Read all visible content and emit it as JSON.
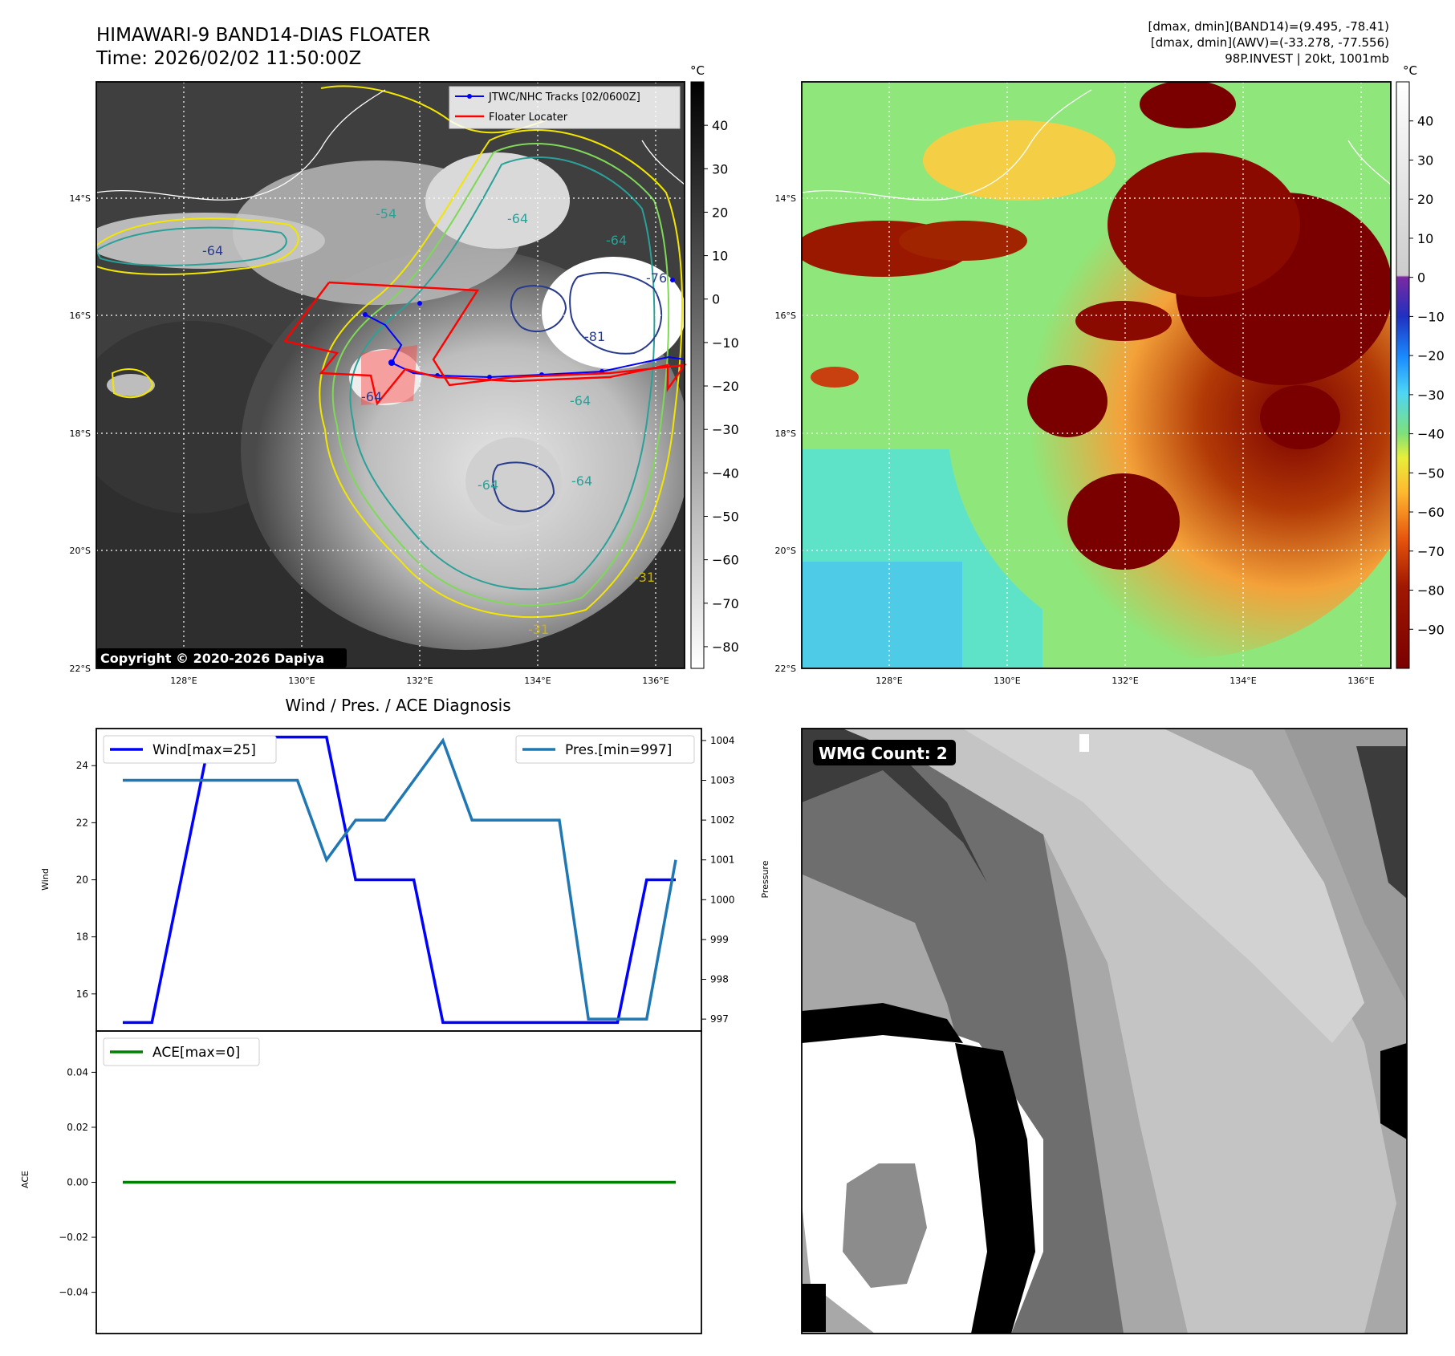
{
  "header": {
    "title_line1": "HIMAWARI-9 BAND14-DIAS FLOATER",
    "title_line2": "Time: 2026/02/02 11:50:00Z",
    "stats_line1": "[dmax, dmin](BAND14)=(9.495, -78.41)",
    "stats_line2": "[dmax, dmin](AWV)=(-33.278, -77.556)",
    "stats_line3": "98P.INVEST | 20kt, 1001mb"
  },
  "map": {
    "lat_labels": [
      "14°S",
      "16°S",
      "18°S",
      "20°S",
      "22°S"
    ],
    "lon_labels": [
      "128°E",
      "130°E",
      "132°E",
      "134°E",
      "136°E"
    ],
    "copyright": "Copyright © 2020-2026 Dapiya",
    "legend": {
      "track_label": "JTWC/NHC Tracks [02/0600Z]",
      "floater_label": "Floater Locater",
      "track_color": "#0000ff",
      "floater_color": "#ff0000"
    },
    "contour_labels": [
      "-64",
      "-64",
      "-54",
      "-64",
      "-76",
      "-81",
      "-64",
      "-64",
      "-31",
      "-31",
      "-64",
      "-64"
    ],
    "ir_colorbar": {
      "unit": "°C",
      "ticks": [
        40,
        30,
        20,
        10,
        0,
        -10,
        -20,
        -30,
        -40,
        -50,
        -60,
        -70,
        -80
      ],
      "tick_labels": [
        "40",
        "30",
        "20",
        "10",
        "0",
        "−10",
        "−20",
        "−30",
        "−40",
        "−50",
        "−60",
        "−70",
        "−80"
      ],
      "range": [
        -85,
        50
      ]
    },
    "enh_colorbar": {
      "unit": "°C",
      "ticks": [
        40,
        30,
        20,
        10,
        0,
        -10,
        -20,
        -30,
        -40,
        -50,
        -60,
        -70,
        -80,
        -90
      ],
      "tick_labels": [
        "40",
        "30",
        "20",
        "10",
        "0",
        "−10",
        "−20",
        "−30",
        "−40",
        "−50",
        "−60",
        "−70",
        "−80",
        "−90"
      ],
      "range": [
        -100,
        50
      ]
    }
  },
  "diag": {
    "title": "Wind / Pres. / ACE Diagnosis"
  },
  "wmg": {
    "label": "WMG Count: 2"
  },
  "chart_data": [
    {
      "type": "line",
      "title": "Wind / Pres. / ACE Diagnosis",
      "x": [
        0,
        1,
        2,
        3,
        4,
        5,
        6,
        7,
        8,
        9,
        10,
        11,
        12,
        13,
        14,
        15,
        16,
        17,
        18,
        19
      ],
      "series": [
        {
          "name": "Wind[max=25]",
          "axis": "left",
          "color": "#0000ff",
          "values": [
            15,
            15,
            20,
            25,
            25,
            25,
            25,
            25,
            20,
            20,
            20,
            15,
            15,
            15,
            15,
            15,
            15,
            15,
            20,
            20
          ]
        },
        {
          "name": "Pres.[min=997]",
          "axis": "right",
          "color": "#1f77b4",
          "values": [
            1003,
            1003,
            1003,
            1003,
            1003,
            1003,
            1003,
            1001,
            1002,
            1002,
            1003,
            1004,
            1002,
            1002,
            1002,
            1002,
            997,
            997,
            997,
            1001
          ]
        }
      ],
      "ylabel": "Wind",
      "y2label": "Pressure",
      "ylim": [
        14.7,
        25.3
      ],
      "y2lim": [
        996.7,
        1004.3
      ],
      "yticks": [
        16,
        18,
        20,
        22,
        24
      ],
      "y2ticks": [
        997,
        998,
        999,
        1000,
        1001,
        1002,
        1003,
        1004
      ],
      "legend": "upper-left / upper-right",
      "grid": false
    },
    {
      "type": "line",
      "x": [
        0,
        1,
        2,
        3,
        4,
        5,
        6,
        7,
        8,
        9,
        10,
        11,
        12,
        13,
        14,
        15,
        16,
        17,
        18,
        19
      ],
      "series": [
        {
          "name": "ACE[max=0]",
          "color": "#008000",
          "values": [
            0,
            0,
            0,
            0,
            0,
            0,
            0,
            0,
            0,
            0,
            0,
            0,
            0,
            0,
            0,
            0,
            0,
            0,
            0,
            0
          ]
        }
      ],
      "ylabel": "ACE",
      "ylim": [
        -0.055,
        0.055
      ],
      "yticks": [
        0.04,
        0.02,
        0.0,
        -0.02,
        -0.04
      ],
      "ytick_labels": [
        "0.04",
        "0.02",
        "0.00",
        "−0.02",
        "−0.04"
      ],
      "legend": "upper-left",
      "grid": false
    }
  ]
}
